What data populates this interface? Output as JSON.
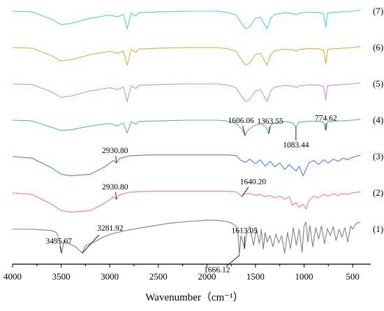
{
  "chart_data": {
    "type": "line",
    "xlabel": "Wavenumber（cm⁻¹）",
    "xlim": [
      4000,
      400
    ],
    "x_reversed": true,
    "x_ticks": [
      "4000",
      "3500",
      "3000",
      "2500",
      "2000",
      "1500",
      "1000",
      "500"
    ],
    "y_axis_shown": false,
    "grid": false,
    "series": [
      {
        "name": "(7)",
        "color": "#4fd0d6",
        "offset": 7,
        "x": [
          4000,
          3800,
          3600,
          3500,
          3400,
          3200,
          3000,
          2920,
          2860,
          2820,
          2780,
          2730,
          2700,
          2500,
          2200,
          1900,
          1800,
          1700,
          1640,
          1600,
          1560,
          1500,
          1450,
          1380,
          1340,
          1300,
          1200,
          1100,
          1080,
          1050,
          950,
          850,
          800,
          775,
          760,
          700,
          600,
          500,
          450,
          420
        ],
        "y": [
          0.0,
          -0.02,
          -0.25,
          -0.42,
          -0.38,
          -0.22,
          -0.12,
          -0.18,
          -0.1,
          -0.55,
          -0.06,
          -0.15,
          -0.05,
          -0.02,
          0.0,
          0.0,
          -0.03,
          -0.12,
          -0.4,
          -0.55,
          -0.48,
          -0.22,
          -0.18,
          -0.55,
          -0.2,
          -0.1,
          -0.05,
          -0.08,
          -0.12,
          -0.06,
          -0.03,
          -0.04,
          -0.08,
          -0.5,
          -0.06,
          -0.04,
          -0.02,
          0.0,
          0.02,
          0.03
        ]
      },
      {
        "name": "(6)",
        "color": "#d8ad45",
        "offset": 6,
        "x": [
          4000,
          3800,
          3600,
          3500,
          3400,
          3200,
          3000,
          2920,
          2860,
          2820,
          2780,
          2730,
          2700,
          2500,
          2200,
          1900,
          1800,
          1700,
          1640,
          1600,
          1560,
          1500,
          1450,
          1380,
          1340,
          1300,
          1200,
          1100,
          1080,
          1050,
          950,
          850,
          800,
          775,
          760,
          700,
          600,
          500,
          450,
          420
        ],
        "y": [
          0.0,
          -0.02,
          -0.25,
          -0.42,
          -0.38,
          -0.22,
          -0.12,
          -0.18,
          -0.1,
          -0.55,
          -0.06,
          -0.15,
          -0.05,
          -0.02,
          0.0,
          0.0,
          -0.03,
          -0.12,
          -0.4,
          -0.55,
          -0.48,
          -0.22,
          -0.18,
          -0.55,
          -0.2,
          -0.1,
          -0.05,
          -0.08,
          -0.12,
          -0.06,
          -0.03,
          -0.04,
          -0.08,
          -0.5,
          -0.06,
          -0.04,
          -0.02,
          0.0,
          0.02,
          0.03
        ]
      },
      {
        "name": "(5)",
        "color": "#c98fe0",
        "offset": 5,
        "x": [
          4000,
          3800,
          3600,
          3500,
          3400,
          3200,
          3000,
          2920,
          2860,
          2820,
          2780,
          2730,
          2700,
          2500,
          2200,
          1900,
          1800,
          1700,
          1640,
          1600,
          1560,
          1500,
          1450,
          1380,
          1340,
          1300,
          1200,
          1100,
          1080,
          1050,
          950,
          850,
          800,
          775,
          760,
          700,
          600,
          500,
          450,
          420
        ],
        "y": [
          0.0,
          -0.02,
          -0.25,
          -0.42,
          -0.38,
          -0.22,
          -0.12,
          -0.18,
          -0.1,
          -0.55,
          -0.06,
          -0.15,
          -0.05,
          -0.02,
          0.0,
          0.0,
          -0.03,
          -0.12,
          -0.4,
          -0.55,
          -0.48,
          -0.22,
          -0.18,
          -0.55,
          -0.2,
          -0.1,
          -0.05,
          -0.08,
          -0.12,
          -0.06,
          -0.03,
          -0.04,
          -0.08,
          -0.5,
          -0.06,
          -0.04,
          -0.02,
          0.0,
          0.02,
          0.03
        ]
      },
      {
        "name": "(4)",
        "color": "#5fb98a",
        "offset": 4,
        "x": [
          4000,
          3800,
          3600,
          3500,
          3400,
          3200,
          3000,
          2920,
          2860,
          2820,
          2780,
          2730,
          2700,
          2500,
          2200,
          1900,
          1800,
          1700,
          1640,
          1606,
          1580,
          1540,
          1500,
          1450,
          1400,
          1363,
          1340,
          1300,
          1200,
          1120,
          1083,
          1050,
          950,
          850,
          800,
          775,
          760,
          700,
          600,
          500,
          450,
          420
        ],
        "y": [
          0.0,
          -0.02,
          -0.22,
          -0.32,
          -0.3,
          -0.18,
          -0.1,
          -0.18,
          -0.08,
          -0.4,
          -0.05,
          -0.12,
          -0.04,
          -0.02,
          0.0,
          0.0,
          -0.02,
          -0.1,
          -0.28,
          -0.48,
          -0.32,
          -0.22,
          -0.15,
          -0.12,
          -0.18,
          -0.42,
          -0.14,
          -0.08,
          -0.04,
          -0.08,
          -0.2,
          -0.06,
          -0.03,
          -0.03,
          -0.06,
          -0.32,
          -0.05,
          -0.03,
          -0.02,
          0.0,
          0.02,
          0.03
        ]
      },
      {
        "name": "(3)",
        "color": "#4f7fdc",
        "offset": 3,
        "x": [
          4000,
          3800,
          3600,
          3500,
          3400,
          3200,
          3050,
          2960,
          2930,
          2900,
          2800,
          2600,
          2400,
          2200,
          2000,
          1800,
          1700,
          1650,
          1600,
          1560,
          1500,
          1450,
          1400,
          1350,
          1300,
          1250,
          1200,
          1150,
          1120,
          1080,
          1050,
          1010,
          980,
          950,
          900,
          850,
          800,
          750,
          700,
          650,
          600,
          550,
          500,
          450,
          420
        ],
        "y": [
          0.0,
          -0.05,
          -0.35,
          -0.55,
          -0.6,
          -0.55,
          -0.32,
          -0.12,
          -0.2,
          -0.06,
          0.02,
          0.05,
          0.05,
          0.05,
          0.05,
          0.05,
          0.03,
          -0.12,
          -0.18,
          -0.08,
          -0.22,
          -0.1,
          -0.3,
          -0.15,
          -0.32,
          -0.2,
          -0.4,
          -0.25,
          -0.35,
          -0.45,
          -0.3,
          -0.6,
          -0.4,
          -0.2,
          -0.12,
          -0.25,
          -0.1,
          -0.2,
          -0.08,
          -0.15,
          -0.05,
          -0.1,
          -0.02,
          0.02,
          0.04
        ]
      },
      {
        "name": "(2)",
        "color": "#ec7d7d",
        "offset": 2,
        "x": [
          4000,
          3800,
          3600,
          3500,
          3400,
          3200,
          3050,
          2960,
          2930,
          2900,
          2800,
          2600,
          2400,
          2200,
          2000,
          1800,
          1700,
          1660,
          1640,
          1620,
          1560,
          1500,
          1450,
          1400,
          1350,
          1300,
          1250,
          1200,
          1150,
          1120,
          1080,
          1050,
          1010,
          980,
          950,
          900,
          850,
          800,
          750,
          700,
          650,
          600,
          550,
          500,
          450,
          420
        ],
        "y": [
          0.0,
          -0.05,
          -0.35,
          -0.55,
          -0.6,
          -0.55,
          -0.32,
          -0.12,
          -0.2,
          -0.06,
          0.02,
          0.05,
          0.05,
          0.05,
          0.05,
          0.05,
          0.03,
          -0.05,
          -0.12,
          -0.03,
          -0.02,
          -0.08,
          -0.05,
          -0.12,
          -0.08,
          -0.15,
          -0.1,
          -0.2,
          -0.12,
          -0.38,
          -0.3,
          -0.45,
          -0.35,
          -0.5,
          -0.25,
          -0.1,
          -0.15,
          -0.05,
          -0.1,
          -0.03,
          -0.08,
          -0.02,
          -0.05,
          0.0,
          0.02,
          0.04
        ]
      },
      {
        "name": "(1)",
        "color": "#808080",
        "offset": 1,
        "x": [
          4000,
          3800,
          3600,
          3550,
          3520,
          3495,
          3470,
          3420,
          3350,
          3282,
          3250,
          3150,
          3050,
          2950,
          2800,
          2600,
          2400,
          2200,
          2000,
          1900,
          1800,
          1750,
          1700,
          1680,
          1666,
          1650,
          1630,
          1613,
          1590,
          1560,
          1520,
          1490,
          1460,
          1440,
          1420,
          1400,
          1380,
          1350,
          1320,
          1290,
          1260,
          1230,
          1200,
          1170,
          1140,
          1110,
          1080,
          1050,
          1020,
          1000,
          980,
          960,
          940,
          910,
          880,
          850,
          820,
          790,
          760,
          730,
          700,
          670,
          640,
          610,
          580,
          550,
          520,
          500,
          470,
          450,
          420
        ],
        "y": [
          0.0,
          0.0,
          -0.04,
          -0.1,
          -0.3,
          -0.75,
          -0.35,
          -0.45,
          -0.55,
          -0.74,
          -0.52,
          -0.38,
          -0.22,
          -0.12,
          -0.02,
          0.08,
          0.18,
          0.24,
          0.28,
          0.28,
          0.24,
          0.2,
          0.1,
          -0.1,
          -0.82,
          -0.2,
          -0.4,
          -0.6,
          -0.12,
          0.1,
          -0.5,
          0.02,
          -0.45,
          0.0,
          -0.62,
          -0.1,
          -0.4,
          -0.2,
          -0.55,
          -0.15,
          -0.42,
          -0.2,
          -0.75,
          -0.1,
          -0.6,
          0.05,
          -0.5,
          0.0,
          -0.72,
          0.1,
          0.22,
          -0.4,
          0.12,
          -0.55,
          0.05,
          -0.3,
          0.1,
          -0.45,
          0.02,
          -0.2,
          0.08,
          -0.35,
          0.0,
          -0.25,
          0.05,
          -0.4,
          0.1,
          0.0,
          0.15,
          0.2,
          0.22
        ]
      }
    ],
    "annotations": [
      {
        "text": "774.62",
        "series": "(4)",
        "x": 774.62
      },
      {
        "text": "1363.55",
        "series": "(4)",
        "x": 1363.55
      },
      {
        "text": "1606.06",
        "series": "(4)",
        "x": 1606.06
      },
      {
        "text": "1083.44",
        "series": "(4)",
        "x": 1083.44
      },
      {
        "text": "2930.80",
        "series": "(3)",
        "x": 2930.8
      },
      {
        "text": "2930.80",
        "series": "(2)",
        "x": 2930.8
      },
      {
        "text": "1640.20",
        "series": "(2)",
        "x": 1640.2
      },
      {
        "text": "3495.07",
        "series": "(1)",
        "x": 3495.07
      },
      {
        "text": "3281.92",
        "series": "(1)",
        "x": 3281.92
      },
      {
        "text": "1613.05",
        "series": "(1)",
        "x": 1613.05
      },
      {
        "text": "1666.12",
        "series": "(1)",
        "x": 1666.12
      }
    ]
  }
}
